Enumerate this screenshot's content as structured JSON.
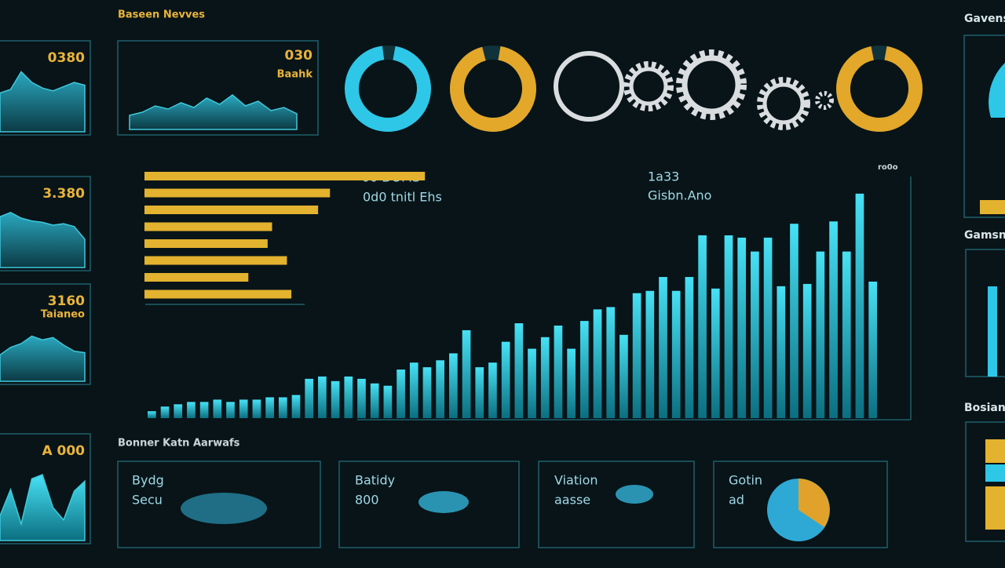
{
  "header": {
    "title": "Baseen Nevves",
    "right_title": "Gavens"
  },
  "left_panels": [
    {
      "value_text": "0380",
      "values": [
        55,
        60,
        85,
        70,
        62,
        58,
        64,
        70,
        66
      ]
    },
    {
      "value_text": "3.380",
      "values": [
        72,
        78,
        70,
        66,
        64,
        60,
        62,
        58,
        40
      ]
    },
    {
      "value_text": "3160",
      "sub": "Taianeo",
      "values": [
        35,
        45,
        50,
        60,
        55,
        58,
        48,
        40,
        38
      ]
    },
    {
      "value_text": "A 000",
      "values": [
        30,
        62,
        20,
        75,
        80,
        40,
        25,
        60,
        72
      ]
    }
  ],
  "top_area": {
    "value_text": "030",
    "sub": "Baahk",
    "values": [
      18,
      22,
      30,
      26,
      34,
      28,
      40,
      32,
      44,
      30,
      36,
      24,
      28,
      20
    ]
  },
  "donuts": [
    {
      "percent": 95,
      "color": "#2ec7e8"
    },
    {
      "percent": 93,
      "color": "#e3a72a"
    },
    {
      "percent": 94,
      "color": "#e3a72a"
    }
  ],
  "hbars": {
    "values": [
      189,
      125,
      117,
      86,
      83,
      96,
      70,
      99
    ],
    "xlim": [
      0,
      200
    ],
    "color": "#e3b22e"
  },
  "main": {
    "labels": [
      "-00 DOMS",
      "0d0 tnitl Ehs",
      "1a33",
      "Gisbn.Ano",
      "ro0o"
    ],
    "values": [
      3,
      5,
      6,
      7,
      7,
      8,
      7,
      8,
      8,
      9,
      9,
      10,
      17,
      18,
      16,
      18,
      17,
      15,
      14,
      21,
      24,
      22,
      25,
      28,
      38,
      22,
      24,
      33,
      41,
      30,
      35,
      40,
      30,
      42,
      47,
      48,
      36,
      54,
      55,
      61,
      55,
      61,
      79,
      56,
      79,
      78,
      72,
      78,
      57,
      84,
      58,
      72,
      85,
      72,
      97,
      59
    ],
    "ylim": [
      0,
      100
    ],
    "color": "#2ec7e8"
  },
  "bottom": {
    "title": "Bonner Katn Aarwafs",
    "cards": [
      {
        "title": "Bydg",
        "sub": "Secu"
      },
      {
        "title": "Batidy",
        "sub": "800"
      },
      {
        "title": "Viation",
        "sub": "aasse"
      },
      {
        "title": "Gotin",
        "sub": "ad"
      }
    ]
  },
  "right": {
    "labels": [
      "Gamsn",
      "Bosian"
    ]
  }
}
